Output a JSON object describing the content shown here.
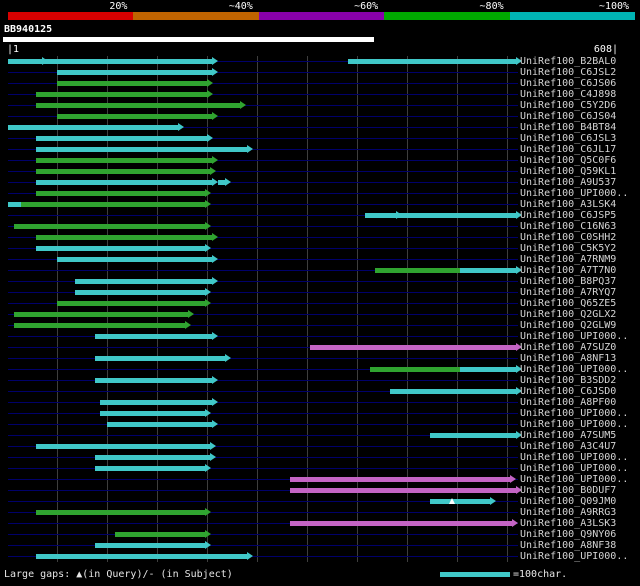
{
  "scale_key": {
    "labels": [
      "20%",
      "~40%",
      "~60%",
      "~80%",
      "~100%"
    ],
    "colors": [
      "#d80000",
      "#c06400",
      "#8800aa",
      "#00a800",
      "#00b4b4"
    ]
  },
  "query": {
    "name": "BB940125",
    "ruler_left": "|1",
    "ruler_right": "608|",
    "length": 608,
    "bar_span": [
      1,
      367
    ]
  },
  "legend": {
    "gaps_text": "Large gaps: ▲(in Query)/- (in Subject)",
    "scalebar_label": "=100char.",
    "scalebar_color": "#40c8c8"
  },
  "colors": {
    "cyan": "#40c8c8",
    "green": "#30a430",
    "magenta": "#c464c4",
    "baseline_navy": "#00006a",
    "gridline_gray": "#3e3e3e",
    "query_bar_white": "#ffffff"
  },
  "chart_data": {
    "type": "bar",
    "title": "",
    "xlabel": "",
    "ylabel": "",
    "xlim": [
      1,
      608
    ],
    "rows": [
      {
        "label": "UniRef100_B2BAL0",
        "segments": [
          {
            "start": 1,
            "end": 205,
            "color": "cyan",
            "arrows": [
              41
            ]
          },
          {
            "start": 341,
            "end": 509,
            "color": "cyan"
          }
        ]
      },
      {
        "label": "UniRef100_C6JSL2",
        "segments": [
          {
            "start": 50,
            "end": 205,
            "color": "cyan"
          }
        ]
      },
      {
        "label": "UniRef100_C6JS06",
        "segments": [
          {
            "start": 50,
            "end": 200,
            "color": "green"
          }
        ]
      },
      {
        "label": "UniRef100_C4J898",
        "segments": [
          {
            "start": 29,
            "end": 200,
            "color": "green"
          }
        ]
      },
      {
        "label": "UniRef100_C5Y2D6",
        "segments": [
          {
            "start": 29,
            "end": 233,
            "color": "green"
          }
        ]
      },
      {
        "label": "UniRef100_C6JS04",
        "segments": [
          {
            "start": 50,
            "end": 205,
            "color": "green"
          }
        ]
      },
      {
        "label": "UniRef100_B4BT84",
        "segments": [
          {
            "start": 1,
            "end": 171,
            "color": "cyan"
          }
        ]
      },
      {
        "label": "UniRef100_C6JSL3",
        "segments": [
          {
            "start": 29,
            "end": 200,
            "color": "cyan"
          }
        ]
      },
      {
        "label": "UniRef100_C6JL17",
        "segments": [
          {
            "start": 29,
            "end": 240,
            "color": "cyan"
          }
        ]
      },
      {
        "label": "UniRef100_Q5C0F6",
        "segments": [
          {
            "start": 29,
            "end": 205,
            "color": "green"
          }
        ]
      },
      {
        "label": "UniRef100_Q59KL1",
        "segments": [
          {
            "start": 29,
            "end": 203,
            "color": "green"
          }
        ]
      },
      {
        "label": "UniRef100_A9U537",
        "segments": [
          {
            "start": 29,
            "end": 205,
            "color": "cyan"
          },
          {
            "start": 211,
            "end": 218,
            "color": "cyan"
          }
        ]
      },
      {
        "label": "UniRef100_UPI000..",
        "segments": [
          {
            "start": 29,
            "end": 198,
            "color": "green"
          }
        ]
      },
      {
        "label": "UniRef100_A3LSK4",
        "segments": [
          {
            "start": 1,
            "end": 14,
            "color": "cyan",
            "end_arrow": false
          },
          {
            "start": 14,
            "end": 198,
            "color": "green"
          }
        ]
      },
      {
        "label": "UniRef100_C6JSP5",
        "segments": [
          {
            "start": 358,
            "end": 509,
            "color": "cyan",
            "arrows": [
              395
            ]
          }
        ]
      },
      {
        "label": "UniRef100_C16N63",
        "segments": [
          {
            "start": 7,
            "end": 198,
            "color": "green"
          }
        ]
      },
      {
        "label": "UniRef100_C0SHH2",
        "segments": [
          {
            "start": 29,
            "end": 205,
            "color": "green"
          }
        ]
      },
      {
        "label": "UniRef100_C5K5Y2",
        "segments": [
          {
            "start": 29,
            "end": 198,
            "color": "cyan"
          }
        ]
      },
      {
        "label": "UniRef100_A7RNM9",
        "segments": [
          {
            "start": 50,
            "end": 205,
            "color": "cyan"
          }
        ]
      },
      {
        "label": "UniRef100_A7T7N0",
        "segments": [
          {
            "start": 368,
            "end": 453,
            "color": "green",
            "end_arrow": false
          },
          {
            "start": 453,
            "end": 509,
            "color": "cyan"
          }
        ]
      },
      {
        "label": "UniRef100_B8PQ37",
        "segments": [
          {
            "start": 68,
            "end": 205,
            "color": "cyan"
          }
        ]
      },
      {
        "label": "UniRef100_A7RYQ7",
        "segments": [
          {
            "start": 68,
            "end": 198,
            "color": "cyan"
          }
        ]
      },
      {
        "label": "UniRef100_Q65ZE5",
        "segments": [
          {
            "start": 50,
            "end": 198,
            "color": "green"
          }
        ]
      },
      {
        "label": "UniRef100_Q2GLX2",
        "segments": [
          {
            "start": 7,
            "end": 181,
            "color": "green"
          }
        ]
      },
      {
        "label": "UniRef100_Q2GLW9",
        "segments": [
          {
            "start": 7,
            "end": 178,
            "color": "green"
          }
        ]
      },
      {
        "label": "UniRef100_UPI000..",
        "segments": [
          {
            "start": 88,
            "end": 205,
            "color": "cyan"
          }
        ]
      },
      {
        "label": "UniRef100_A7SUZ0",
        "segments": [
          {
            "start": 303,
            "end": 509,
            "color": "magenta"
          }
        ]
      },
      {
        "label": "UniRef100_A8NF13",
        "segments": [
          {
            "start": 88,
            "end": 218,
            "color": "cyan"
          }
        ]
      },
      {
        "label": "UniRef100_UPI000..",
        "segments": [
          {
            "start": 363,
            "end": 453,
            "color": "green",
            "end_arrow": false
          },
          {
            "start": 453,
            "end": 509,
            "color": "cyan"
          }
        ]
      },
      {
        "label": "UniRef100_B3SDD2",
        "segments": [
          {
            "start": 88,
            "end": 205,
            "color": "cyan"
          }
        ]
      },
      {
        "label": "UniRef100_C6JSD0",
        "segments": [
          {
            "start": 383,
            "end": 509,
            "color": "cyan"
          }
        ]
      },
      {
        "label": "UniRef100_A8PF00",
        "segments": [
          {
            "start": 93,
            "end": 205,
            "color": "cyan"
          }
        ]
      },
      {
        "label": "UniRef100_UPI000..",
        "segments": [
          {
            "start": 93,
            "end": 198,
            "color": "cyan"
          }
        ]
      },
      {
        "label": "UniRef100_UPI000..",
        "segments": [
          {
            "start": 100,
            "end": 205,
            "color": "cyan"
          }
        ]
      },
      {
        "label": "UniRef100_A7SUM5",
        "segments": [
          {
            "start": 423,
            "end": 509,
            "color": "cyan"
          }
        ]
      },
      {
        "label": "UniRef100_A3C4U7",
        "segments": [
          {
            "start": 29,
            "end": 203,
            "color": "cyan"
          }
        ]
      },
      {
        "label": "UniRef100_UPI000..",
        "segments": [
          {
            "start": 88,
            "end": 203,
            "color": "cyan"
          }
        ]
      },
      {
        "label": "UniRef100_UPI000..",
        "segments": [
          {
            "start": 88,
            "end": 198,
            "color": "cyan"
          }
        ]
      },
      {
        "label": "UniRef100_UPI000..",
        "segments": [
          {
            "start": 283,
            "end": 503,
            "color": "magenta"
          }
        ]
      },
      {
        "label": "UniRef100_B0DUF7",
        "segments": [
          {
            "start": 283,
            "end": 509,
            "color": "magenta"
          }
        ]
      },
      {
        "label": "UniRef100_Q09JM0",
        "segments": [
          {
            "start": 423,
            "end": 483,
            "color": "cyan",
            "gaps": [
              445
            ]
          }
        ]
      },
      {
        "label": "UniRef100_A9RRG3",
        "segments": [
          {
            "start": 29,
            "end": 198,
            "color": "green"
          }
        ]
      },
      {
        "label": "UniRef100_A3LSK3",
        "segments": [
          {
            "start": 283,
            "end": 505,
            "color": "magenta"
          }
        ]
      },
      {
        "label": "UniRef100_Q9NY06",
        "segments": [
          {
            "start": 108,
            "end": 198,
            "color": "green"
          }
        ]
      },
      {
        "label": "UniRef100_A8NF38",
        "segments": [
          {
            "start": 88,
            "end": 198,
            "color": "cyan"
          }
        ]
      },
      {
        "label": "UniRef100_UPI000..",
        "segments": [
          {
            "start": 29,
            "end": 240,
            "color": "cyan"
          }
        ]
      }
    ]
  }
}
